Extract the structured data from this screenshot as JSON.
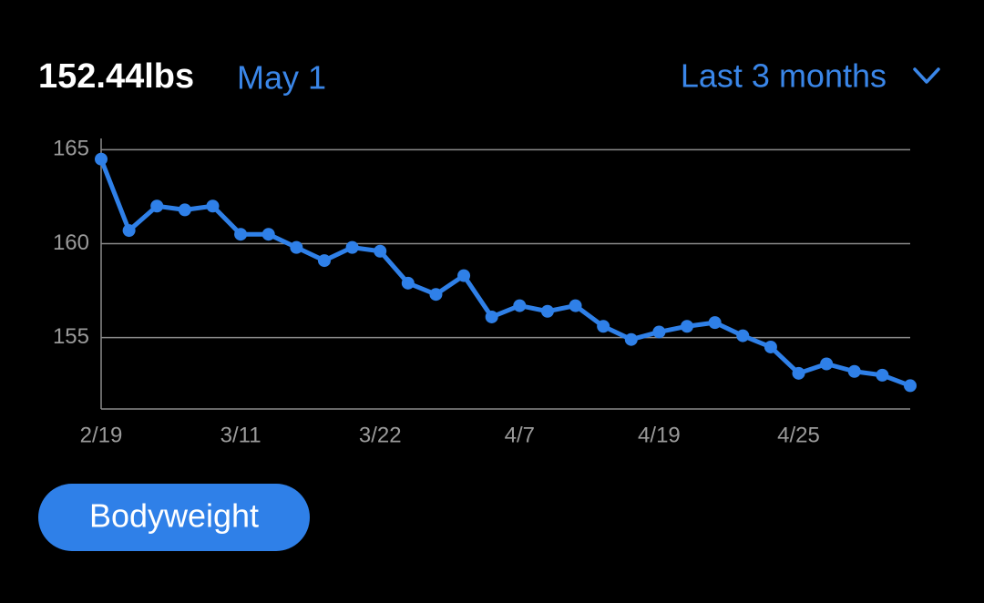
{
  "header": {
    "value": "152.44lbs",
    "date": "May 1",
    "range": "Last 3 months"
  },
  "chart_data": {
    "type": "line",
    "categories": [
      "2/19",
      null,
      null,
      null,
      null,
      "3/11",
      null,
      null,
      null,
      null,
      "3/22",
      null,
      null,
      null,
      null,
      "4/7",
      null,
      null,
      null,
      null,
      "4/19",
      null,
      null,
      null,
      null,
      "4/25",
      null,
      null,
      null,
      null
    ],
    "series": [
      {
        "color": "#2f80e8",
        "values": [
          164.5,
          160.7,
          162.0,
          161.8,
          162.0,
          160.5,
          160.5,
          159.8,
          159.1,
          159.8,
          159.6,
          157.9,
          157.3,
          158.3,
          156.1,
          156.7,
          156.4,
          156.7,
          155.6,
          154.9,
          155.3,
          155.6,
          155.8,
          155.1,
          154.5,
          153.1,
          153.6,
          153.2,
          153.0,
          152.44
        ]
      }
    ],
    "ylim": [
      151.2,
      165.6
    ],
    "yticks": [
      155,
      160,
      165
    ],
    "grid": true
  },
  "filter_button": "Bodyweight"
}
